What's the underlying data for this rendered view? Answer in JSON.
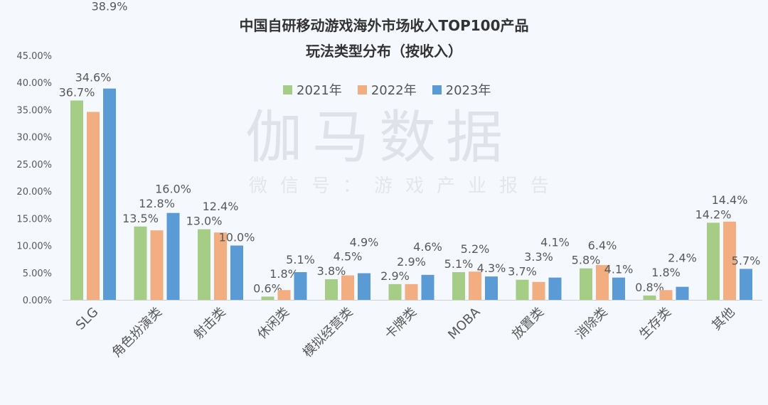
{
  "chart_data": {
    "type": "bar",
    "title": "中国自研移动游戏海外市场收入TOP100产品",
    "subtitle": "玩法类型分布（按收入）",
    "categories": [
      "SLG",
      "角色扮演类",
      "射击类",
      "休闲类",
      "模拟经营类",
      "卡牌类",
      "MOBA",
      "放置类",
      "消除类",
      "生存类",
      "其他"
    ],
    "series": [
      {
        "name": "2021年",
        "color": "#a5cd86",
        "values": [
          36.7,
          13.5,
          13.0,
          0.6,
          3.8,
          2.9,
          5.1,
          3.7,
          5.8,
          0.8,
          14.2
        ]
      },
      {
        "name": "2022年",
        "color": "#f2ae80",
        "values": [
          34.6,
          12.8,
          12.4,
          1.8,
          4.5,
          2.9,
          5.2,
          3.3,
          6.4,
          1.8,
          14.4
        ]
      },
      {
        "name": "2023年",
        "color": "#5b9bd5",
        "values": [
          38.9,
          16.0,
          10.0,
          5.1,
          4.9,
          4.6,
          4.3,
          4.1,
          4.1,
          2.4,
          5.7
        ]
      }
    ],
    "yticks": [
      "0.00%",
      "5.00%",
      "10.00%",
      "15.00%",
      "20.00%",
      "25.00%",
      "30.00%",
      "35.00%",
      "40.00%",
      "45.00%"
    ],
    "ylim": [
      0,
      45
    ],
    "xlabel": "",
    "ylabel": "",
    "grid": false,
    "legend": "top-center",
    "data_labels": true
  },
  "watermark": {
    "main": "伽马数据",
    "sub": "微信号：游戏产业报告"
  }
}
